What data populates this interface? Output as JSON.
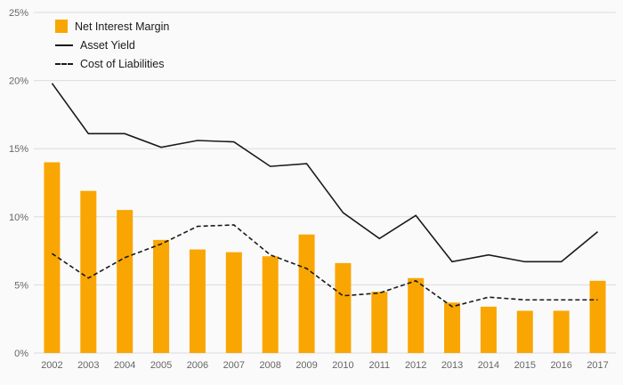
{
  "chart_data": {
    "type": "bar",
    "title": "",
    "xlabel": "",
    "ylabel": "",
    "categories": [
      "2002",
      "2003",
      "2004",
      "2005",
      "2006",
      "2007",
      "2008",
      "2009",
      "2010",
      "2011",
      "2012",
      "2013",
      "2014",
      "2015",
      "2016",
      "2017"
    ],
    "series": [
      {
        "name": "Net Interest Margin",
        "type": "bar",
        "color": "#F9A602",
        "values": [
          14.0,
          11.9,
          10.5,
          8.3,
          7.6,
          7.4,
          7.1,
          8.7,
          6.6,
          4.5,
          5.5,
          3.7,
          3.4,
          3.1,
          3.1,
          5.3
        ]
      },
      {
        "name": "Asset Yield",
        "type": "line",
        "style": "solid",
        "color": "#1a1a1a",
        "values": [
          19.8,
          16.1,
          16.1,
          15.1,
          15.6,
          15.5,
          13.7,
          13.9,
          10.3,
          8.4,
          10.1,
          6.7,
          7.2,
          6.7,
          6.7,
          8.9
        ]
      },
      {
        "name": "Cost of Liabilities",
        "type": "line",
        "style": "dashed",
        "color": "#1a1a1a",
        "values": [
          7.3,
          5.5,
          7.0,
          8.0,
          9.3,
          9.4,
          7.2,
          6.2,
          4.2,
          4.4,
          5.3,
          3.4,
          4.1,
          3.9,
          3.9,
          3.9
        ]
      }
    ],
    "ylim": [
      0,
      25
    ],
    "y_tick_step": 5,
    "y_tick_suffix": "%",
    "grid": true,
    "legend_position": "top-left",
    "background_color": "#fafafa",
    "gridline_color": "#dcdcdc"
  }
}
